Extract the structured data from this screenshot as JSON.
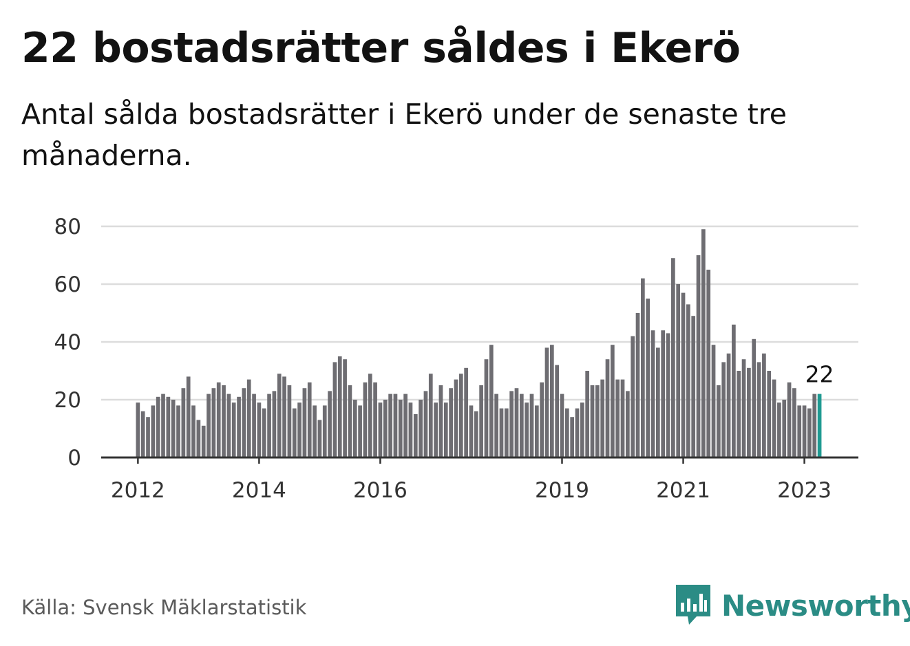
{
  "title": "22 bostadsrätter såldes i Ekerö",
  "subtitle": "Antal sålda bostadsrätter i Ekerö under de senaste tre månaderna.",
  "source": "Källa: Svensk Mäklarstatistik",
  "brand": {
    "name": "Newsworthy",
    "icon": "bar-chart-speech-bubble-icon"
  },
  "colors": {
    "bar": "#6e6d72",
    "highlight": "#1f9a92",
    "grid": "#dcdcdc",
    "axis": "#333333",
    "brand": "#2b8c85"
  },
  "chart_data": {
    "type": "bar",
    "title": "22 bostadsrätter såldes i Ekerö",
    "xlabel": "",
    "ylabel": "",
    "ylim": [
      0,
      80
    ],
    "yticks": [
      0,
      20,
      40,
      60,
      80
    ],
    "grid": true,
    "x_tick_labels": [
      {
        "label": "2012",
        "index": 0
      },
      {
        "label": "2014",
        "index": 24
      },
      {
        "label": "2016",
        "index": 48
      },
      {
        "label": "2019",
        "index": 84
      },
      {
        "label": "2021",
        "index": 108
      },
      {
        "label": "2023",
        "index": 132
      }
    ],
    "period_start": "2012-01",
    "values": [
      19,
      16,
      14,
      18,
      21,
      22,
      21,
      20,
      18,
      24,
      28,
      18,
      13,
      11,
      22,
      24,
      26,
      25,
      22,
      19,
      21,
      24,
      27,
      22,
      19,
      17,
      22,
      23,
      29,
      28,
      25,
      17,
      19,
      24,
      26,
      18,
      13,
      18,
      23,
      33,
      35,
      34,
      25,
      20,
      18,
      26,
      29,
      26,
      19,
      20,
      22,
      22,
      20,
      22,
      19,
      15,
      20,
      23,
      29,
      19,
      25,
      19,
      24,
      27,
      29,
      31,
      18,
      16,
      25,
      34,
      39,
      22,
      17,
      17,
      23,
      24,
      22,
      19,
      22,
      18,
      26,
      38,
      39,
      32,
      22,
      17,
      14,
      17,
      19,
      30,
      25,
      25,
      27,
      34,
      39,
      27,
      27,
      23,
      42,
      50,
      62,
      55,
      44,
      38,
      44,
      43,
      69,
      60,
      57,
      53,
      49,
      70,
      79,
      65,
      39,
      25,
      33,
      36,
      46,
      30,
      34,
      31,
      41,
      33,
      36,
      30,
      27,
      19,
      20,
      26,
      24,
      18,
      18,
      17,
      22,
      22
    ],
    "highlight_index": 135,
    "annotations": [
      {
        "index": 135,
        "text": "22"
      }
    ]
  }
}
